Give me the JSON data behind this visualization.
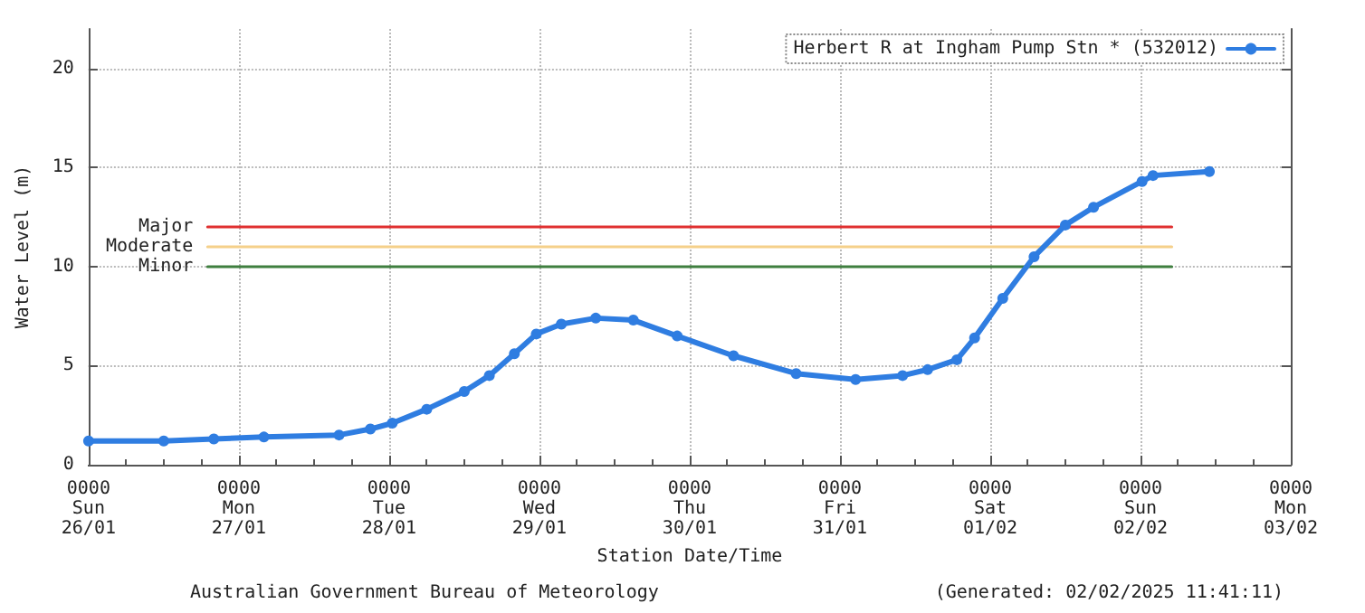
{
  "chart_data": {
    "type": "line",
    "xlabel": "Station Date/Time",
    "ylabel": "Water Level (m)",
    "annotations": [
      "Australian Government Bureau of Meteorology",
      "(Generated: 02/02/2025 11:41:11)"
    ],
    "x": [
      "2025-01-26T00:00",
      "2025-01-26T12:00",
      "2025-01-26T20:00",
      "2025-01-27T04:00",
      "2025-01-27T16:00",
      "2025-01-27T21:00",
      "2025-01-28T00:30",
      "2025-01-28T06:00",
      "2025-01-28T12:00",
      "2025-01-28T16:00",
      "2025-01-28T20:00",
      "2025-01-28T23:30",
      "2025-01-29T03:30",
      "2025-01-29T09:00",
      "2025-01-29T15:00",
      "2025-01-29T22:00",
      "2025-01-30T07:00",
      "2025-01-30T17:00",
      "2025-01-31T02:30",
      "2025-01-31T10:00",
      "2025-01-31T14:00",
      "2025-01-31T18:40",
      "2025-01-31T21:30",
      "2025-02-01T02:00",
      "2025-02-01T07:00",
      "2025-02-01T12:00",
      "2025-02-01T16:30",
      "2025-02-02T00:15",
      "2025-02-02T02:00",
      "2025-02-02T11:00"
    ],
    "series": [
      {
        "name": "Herbert R at Ingham Pump Stn * (532012)",
        "color": "#2f7de1",
        "values": [
          1.2,
          1.2,
          1.3,
          1.4,
          1.5,
          1.8,
          2.1,
          2.8,
          3.7,
          4.5,
          5.6,
          6.6,
          7.1,
          7.4,
          7.3,
          6.5,
          5.5,
          4.6,
          4.3,
          4.5,
          4.8,
          5.3,
          6.4,
          8.4,
          10.5,
          12.1,
          13.0,
          14.3,
          14.6,
          14.8
        ]
      },
      {
        "name": "Major",
        "type": "line",
        "marker": "none",
        "color": "#e03030",
        "x": [
          "2025-01-26T19:00",
          "2025-02-02T05:00"
        ],
        "values": [
          12,
          12
        ]
      },
      {
        "name": "Moderate",
        "type": "line",
        "marker": "none",
        "color": "#f5d08a",
        "x": [
          "2025-01-26T19:00",
          "2025-02-02T05:00"
        ],
        "values": [
          11,
          11
        ]
      },
      {
        "name": "Minor",
        "type": "line",
        "marker": "none",
        "color": "#3f7f3f",
        "x": [
          "2025-01-26T19:00",
          "2025-02-02T05:00"
        ],
        "values": [
          10,
          10
        ]
      }
    ],
    "xlim": [
      "2025-01-26T00:00",
      "2025-02-03T00:00"
    ],
    "xticks": [
      {
        "value": "2025-01-26T00:00",
        "label": "0000\nSun\n26/01"
      },
      {
        "value": "2025-01-27T00:00",
        "label": "0000\nMon\n27/01"
      },
      {
        "value": "2025-01-28T00:00",
        "label": "0000\nTue\n28/01"
      },
      {
        "value": "2025-01-29T00:00",
        "label": "0000\nWed\n29/01"
      },
      {
        "value": "2025-01-30T00:00",
        "label": "0000\nThu\n30/01"
      },
      {
        "value": "2025-01-31T00:00",
        "label": "0000\nFri\n31/01"
      },
      {
        "value": "2025-02-01T00:00",
        "label": "0000\nSat\n01/02"
      },
      {
        "value": "2025-02-02T00:00",
        "label": "0000\nSun\n02/02"
      },
      {
        "value": "2025-02-03T00:00",
        "label": "0000\nMon\n03/02"
      }
    ],
    "ylim": [
      0,
      22
    ],
    "yticks": [
      0,
      5,
      10,
      15,
      20
    ],
    "grid": true,
    "legend": "top right",
    "marker": "circle",
    "line_style": "solid"
  }
}
